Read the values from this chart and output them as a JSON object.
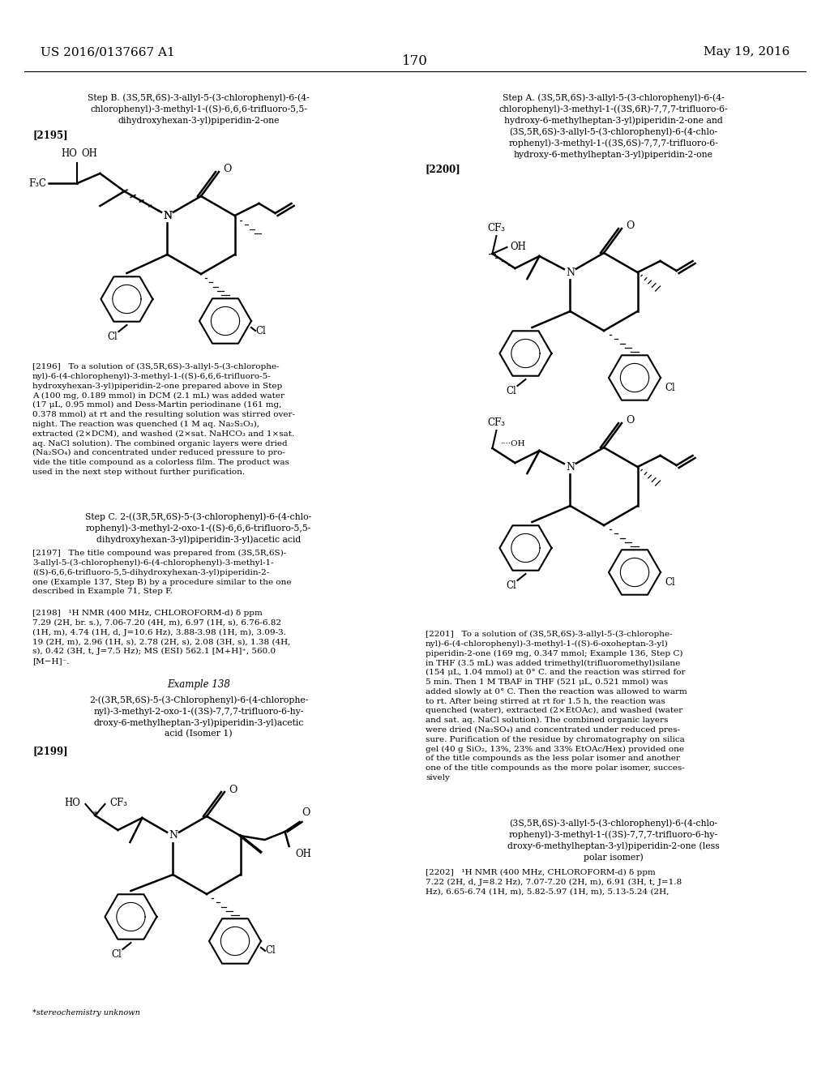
{
  "page_header_left": "US 2016/0137667 A1",
  "page_header_right": "May 19, 2016",
  "page_number": "170",
  "background_color": "#ffffff",
  "text_color": "#000000"
}
